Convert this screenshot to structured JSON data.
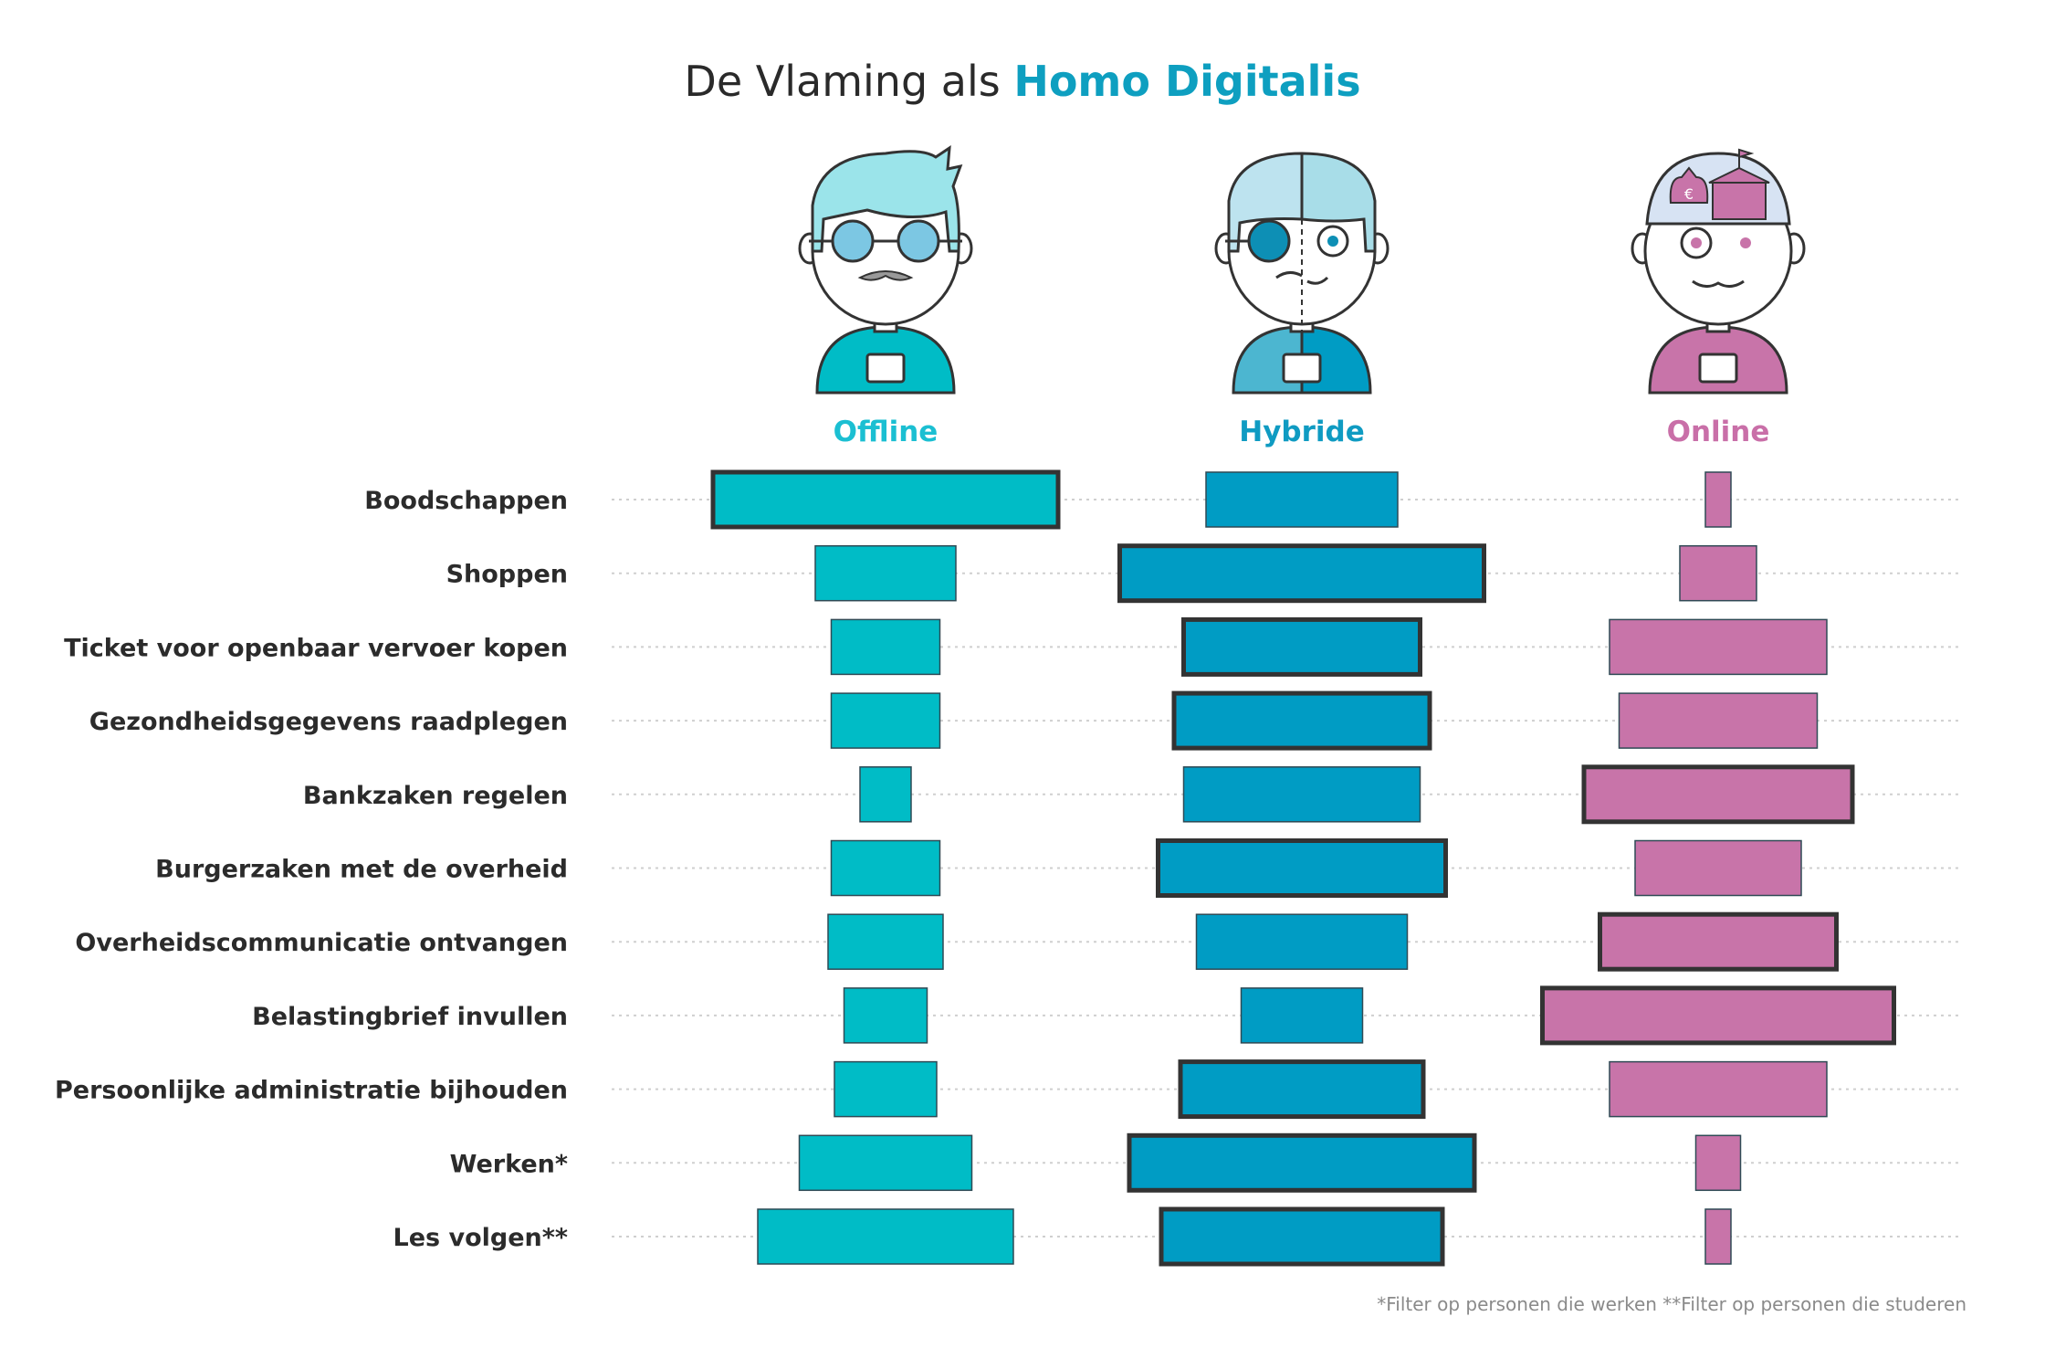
{
  "title": {
    "prefix": "De Vlaming als",
    "highlight": "Homo Digitalis"
  },
  "footnote": "*Filter op personen die werken **Filter op personen die studeren",
  "colors": {
    "offline": "#00bcc6",
    "hybride": "#009cc4",
    "online": "#c874a9",
    "offline_label": "#1bbfd2",
    "hybride_label": "#0f9bc2",
    "online_label": "#c96fa8",
    "outline": "#333333",
    "gridline": "#cfcfcf"
  },
  "icons": [
    "offline-person-icon",
    "hybride-person-icon",
    "online-person-icon"
  ],
  "chart_data": {
    "type": "bar",
    "orientation": "horizontal-centered",
    "categories": [
      "Boodschappen",
      "Shoppen",
      "Ticket voor openbaar vervoer kopen",
      "Gezondheidsgegevens raadplegen",
      "Bankzaken regelen",
      "Burgerzaken met de overheid",
      "Overheidscommunicatie ontvangen",
      "Belastingbrief invullen",
      "Persoonlijke administratie bijhouden",
      "Werken*",
      "Les volgen**"
    ],
    "series": [
      {
        "name": "Offline",
        "values": [
          54,
          22,
          17,
          17,
          8,
          17,
          18,
          13,
          16,
          27,
          40
        ],
        "highlighted": [
          true,
          false,
          false,
          false,
          false,
          false,
          false,
          false,
          false,
          false,
          false
        ]
      },
      {
        "name": "Hybride",
        "values": [
          30,
          57,
          37,
          40,
          37,
          45,
          33,
          19,
          38,
          54,
          44
        ],
        "highlighted": [
          false,
          true,
          true,
          true,
          false,
          true,
          false,
          false,
          true,
          true,
          true
        ]
      },
      {
        "name": "Online",
        "values": [
          4,
          12,
          34,
          31,
          42,
          26,
          37,
          55,
          34,
          7,
          4
        ],
        "highlighted": [
          false,
          false,
          false,
          false,
          true,
          false,
          true,
          true,
          false,
          false,
          false
        ]
      }
    ],
    "grid": true,
    "legend": "column headers"
  }
}
